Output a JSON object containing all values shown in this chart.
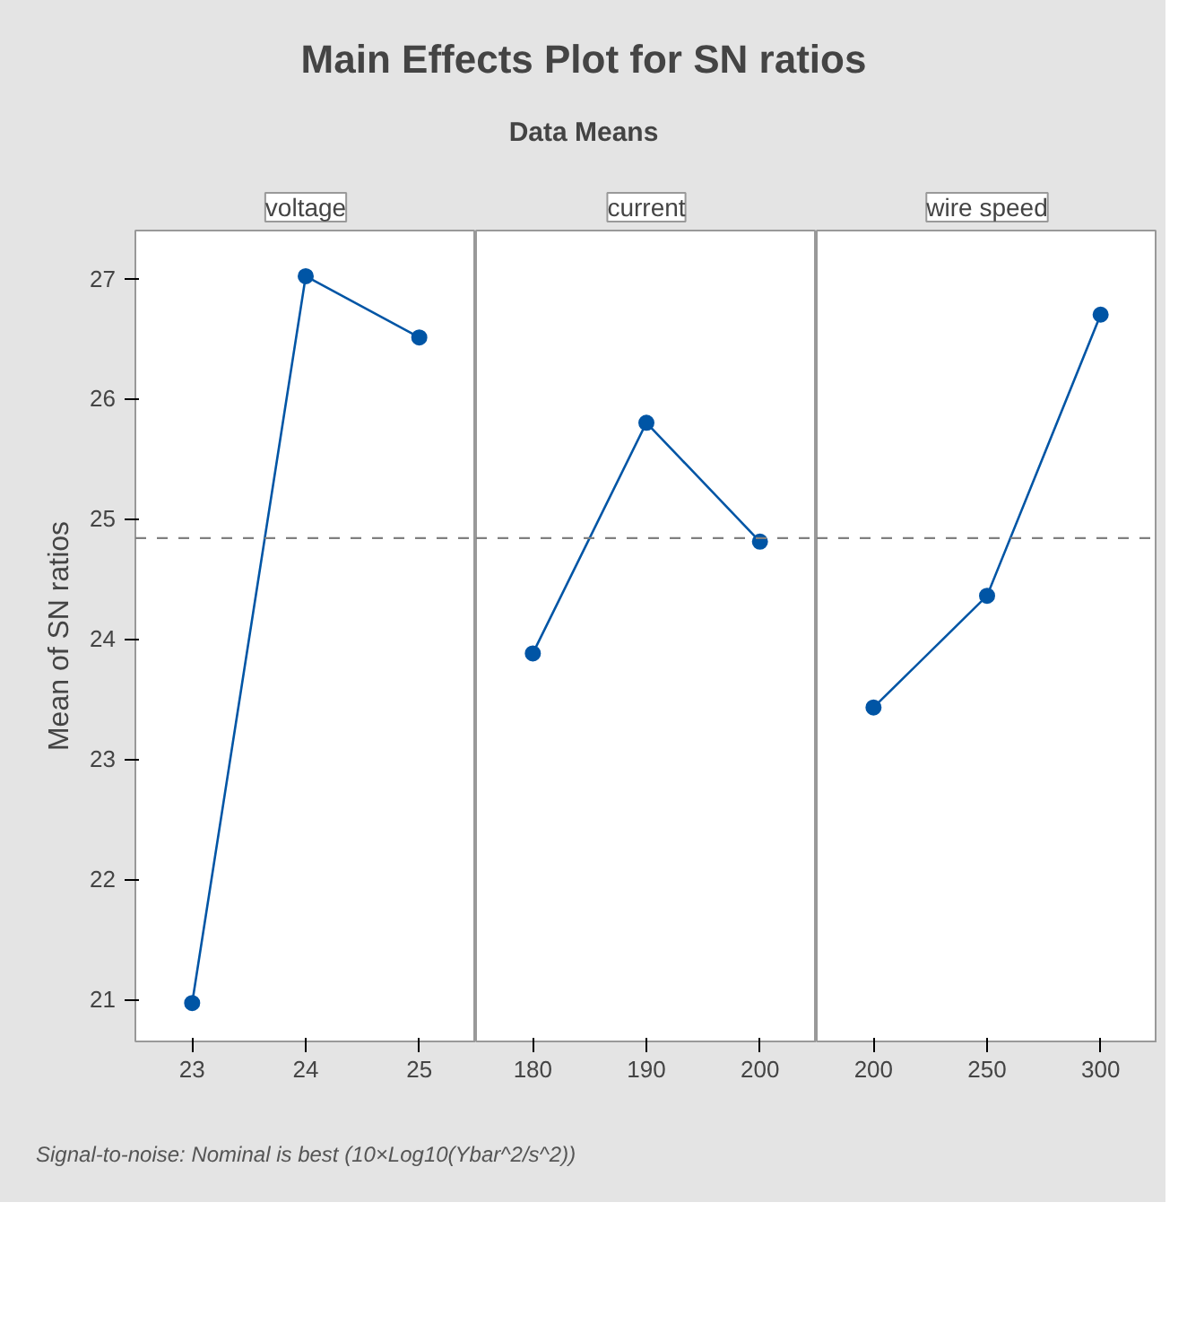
{
  "chart_data": [
    {
      "type": "other",
      "title": "Main Effects Plot for SN ratios",
      "subtitle": "Data Means",
      "annotations": [
        "Signal-to-noise: Nominal is best (10×Log10(Ybar^2/s^2))"
      ]
    },
    {
      "type": "line",
      "title": "voltage",
      "ylabel": "Mean of SN ratios",
      "categories": [
        "23",
        "24",
        "25"
      ],
      "series": [
        {
          "color": "#0055a5",
          "values": [
            20.97,
            27.02,
            26.51
          ]
        }
      ],
      "ylim": [
        20.65,
        27.4
      ],
      "yticks": [
        21,
        22,
        23,
        24,
        25,
        26,
        27
      ],
      "marker": "circle",
      "line_style": "solid",
      "grid": false,
      "ref_lines": [
        {
          "axis": "y",
          "value": 24.84,
          "color": "#808080",
          "line_style": "dashed"
        }
      ]
    },
    {
      "type": "line",
      "title": "current",
      "categories": [
        "180",
        "190",
        "200"
      ],
      "series": [
        {
          "color": "#0055a5",
          "values": [
            23.88,
            25.8,
            24.81
          ]
        }
      ],
      "ylim": [
        20.65,
        27.4
      ],
      "tick_labels": "x",
      "marker": "circle",
      "line_style": "solid",
      "grid": false,
      "ref_lines": [
        {
          "axis": "y",
          "value": 24.84,
          "color": "#808080",
          "line_style": "dashed"
        }
      ]
    },
    {
      "type": "line",
      "title": "wire speed",
      "categories": [
        "200",
        "250",
        "300"
      ],
      "series": [
        {
          "color": "#0055a5",
          "values": [
            23.43,
            24.36,
            26.7
          ]
        }
      ],
      "ylim": [
        20.65,
        27.4
      ],
      "tick_labels": "x",
      "marker": "circle",
      "line_style": "solid",
      "grid": false,
      "ref_lines": [
        {
          "axis": "y",
          "value": 24.84,
          "color": "#808080",
          "line_style": "dashed"
        }
      ]
    }
  ]
}
